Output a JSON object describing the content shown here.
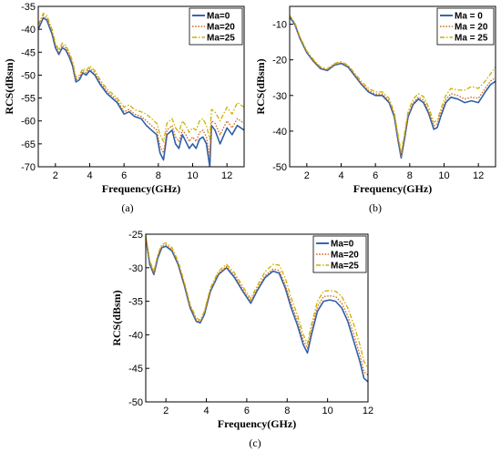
{
  "colors": {
    "ma0": "#2e5fa8",
    "ma20": "#d2691e",
    "ma25": "#c9b000"
  },
  "chart_data": [
    {
      "type": "line",
      "caption": "(a)",
      "xlabel": "Frequency(GHz)",
      "ylabel": "RCS(dBsm)",
      "xlim": [
        1,
        13
      ],
      "ylim": [
        -70,
        -35
      ],
      "xticks": [
        2,
        4,
        6,
        8,
        10,
        12
      ],
      "yticks": [
        -35,
        -40,
        -45,
        -50,
        -55,
        -60,
        -65,
        -70
      ],
      "legend_position": "top-right",
      "series": [
        {
          "name": "Ma=0",
          "x": [
            1,
            1.3,
            1.5,
            1.8,
            2,
            2.2,
            2.4,
            2.6,
            2.8,
            3,
            3.2,
            3.4,
            3.6,
            3.8,
            4,
            4.3,
            4.6,
            5,
            5.3,
            5.6,
            6,
            6.3,
            6.6,
            7,
            7.3,
            7.6,
            7.9,
            8.1,
            8.3,
            8.5,
            8.8,
            9,
            9.2,
            9.4,
            9.6,
            9.8,
            10,
            10.2,
            10.4,
            10.6,
            10.8,
            11,
            11.1,
            11.3,
            11.6,
            12,
            12.3,
            12.6,
            13
          ],
          "y": [
            -40,
            -37.5,
            -38,
            -41,
            -44,
            -45.5,
            -44,
            -44.5,
            -46,
            -48,
            -51.5,
            -51,
            -49.5,
            -50,
            -49,
            -50,
            -52,
            -54,
            -55,
            -56,
            -58.5,
            -58,
            -59,
            -59.5,
            -61,
            -62,
            -63,
            -67,
            -68.5,
            -63,
            -62,
            -65,
            -66,
            -63,
            -64.5,
            -66,
            -65,
            -66,
            -64,
            -63.5,
            -65,
            -70,
            -61,
            -62,
            -65,
            -61.5,
            -63,
            -61,
            -62
          ]
        },
        {
          "name": "Ma=20",
          "x": [
            1,
            1.3,
            1.5,
            1.8,
            2,
            2.2,
            2.4,
            2.6,
            2.8,
            3,
            3.2,
            3.4,
            3.6,
            3.8,
            4,
            4.3,
            4.6,
            5,
            5.3,
            5.6,
            6,
            6.3,
            6.6,
            7,
            7.3,
            7.6,
            7.9,
            8.1,
            8.3,
            8.5,
            8.8,
            9,
            9.2,
            9.4,
            9.6,
            9.8,
            10,
            10.2,
            10.4,
            10.6,
            10.8,
            11,
            11.1,
            11.3,
            11.6,
            12,
            12.3,
            12.6,
            13
          ],
          "y": [
            -39.5,
            -37,
            -37.5,
            -40.5,
            -43.5,
            -45,
            -43.5,
            -44,
            -45.5,
            -47.5,
            -51,
            -50.5,
            -49,
            -49.5,
            -48.5,
            -49.5,
            -51.5,
            -53.5,
            -54.5,
            -55.5,
            -58,
            -57.5,
            -58.5,
            -59,
            -60,
            -61,
            -62,
            -65.5,
            -67,
            -62,
            -61,
            -63.5,
            -64.5,
            -62,
            -63,
            -64.5,
            -63.5,
            -64.5,
            -62.5,
            -62,
            -63.5,
            -68,
            -60,
            -60.5,
            -63,
            -60,
            -61.5,
            -59.5,
            -60.5
          ]
        },
        {
          "name": "Ma=25",
          "x": [
            1,
            1.3,
            1.5,
            1.8,
            2,
            2.2,
            2.4,
            2.6,
            2.8,
            3,
            3.2,
            3.4,
            3.6,
            3.8,
            4,
            4.3,
            4.6,
            5,
            5.3,
            5.6,
            6,
            6.3,
            6.6,
            7,
            7.3,
            7.6,
            7.9,
            8.1,
            8.3,
            8.5,
            8.8,
            9,
            9.2,
            9.4,
            9.6,
            9.8,
            10,
            10.2,
            10.4,
            10.6,
            10.8,
            11,
            11.1,
            11.3,
            11.6,
            12,
            12.3,
            12.6,
            13
          ],
          "y": [
            -39,
            -36.5,
            -37,
            -40,
            -43,
            -44.5,
            -43,
            -43.5,
            -45,
            -47,
            -50.5,
            -50,
            -48.5,
            -49,
            -48,
            -49,
            -51,
            -53,
            -54,
            -55,
            -57,
            -56.5,
            -57.5,
            -58,
            -58.5,
            -59.5,
            -60.5,
            -63,
            -64.5,
            -60.5,
            -59.5,
            -61.5,
            -62.5,
            -60,
            -61,
            -62.5,
            -61.5,
            -62,
            -60,
            -59.5,
            -61,
            -64,
            -57.5,
            -58,
            -60,
            -57,
            -58.5,
            -56,
            -57
          ]
        }
      ]
    },
    {
      "type": "line",
      "caption": "(b)",
      "xlabel": "Frequency(GHz)",
      "ylabel": "RCS(dBsm)",
      "xlim": [
        1,
        13
      ],
      "ylim": [
        -50,
        -5
      ],
      "xticks": [
        2,
        4,
        6,
        8,
        10,
        12
      ],
      "yticks": [
        -10,
        -20,
        -30,
        -40,
        -50
      ],
      "legend_position": "top-right",
      "series": [
        {
          "name": "Ma = 0",
          "x": [
            1,
            1.3,
            1.6,
            2,
            2.4,
            2.8,
            3.2,
            3.6,
            4,
            4.4,
            4.8,
            5.2,
            5.6,
            6,
            6.4,
            6.8,
            7.1,
            7.3,
            7.5,
            7.7,
            7.9,
            8.2,
            8.5,
            8.8,
            9.1,
            9.4,
            9.6,
            9.8,
            10.1,
            10.4,
            10.8,
            11.2,
            11.6,
            12,
            12.4,
            12.7,
            13
          ],
          "y": [
            -8,
            -10,
            -14,
            -18,
            -20.5,
            -22.5,
            -23,
            -21.5,
            -21,
            -22,
            -24.5,
            -27,
            -29,
            -30,
            -30,
            -32,
            -36,
            -42,
            -47.5,
            -42,
            -36,
            -32.5,
            -31,
            -32,
            -35,
            -39.5,
            -39,
            -36,
            -32,
            -30.5,
            -31,
            -32,
            -31.5,
            -32,
            -29,
            -27,
            -26
          ]
        },
        {
          "name": "Ma = 20",
          "x": [
            1,
            1.3,
            1.6,
            2,
            2.4,
            2.8,
            3.2,
            3.6,
            4,
            4.4,
            4.8,
            5.2,
            5.6,
            6,
            6.4,
            6.8,
            7.1,
            7.3,
            7.5,
            7.7,
            7.9,
            8.2,
            8.5,
            8.8,
            9.1,
            9.4,
            9.6,
            9.8,
            10.1,
            10.4,
            10.8,
            11.2,
            11.6,
            12,
            12.4,
            12.7,
            13
          ],
          "y": [
            -7.8,
            -9.8,
            -13.8,
            -17.8,
            -20.3,
            -22.3,
            -22.8,
            -21.3,
            -20.8,
            -21.8,
            -24.2,
            -26.7,
            -28.6,
            -29.6,
            -29.6,
            -31.5,
            -35.5,
            -41.5,
            -47,
            -41.5,
            -35.5,
            -32,
            -30.5,
            -31.3,
            -34.3,
            -38.5,
            -38,
            -35,
            -31.2,
            -29.5,
            -30,
            -31,
            -30.5,
            -30.8,
            -28,
            -26,
            -25
          ]
        },
        {
          "name": "Ma = 25",
          "x": [
            1,
            1.3,
            1.6,
            2,
            2.4,
            2.8,
            3.2,
            3.6,
            4,
            4.4,
            4.8,
            5.2,
            5.6,
            6,
            6.4,
            6.8,
            7.1,
            7.3,
            7.5,
            7.7,
            7.9,
            8.2,
            8.5,
            8.8,
            9.1,
            9.4,
            9.6,
            9.8,
            10.1,
            10.4,
            10.8,
            11.2,
            11.6,
            12,
            12.4,
            12.7,
            13
          ],
          "y": [
            -7.5,
            -9.5,
            -13.5,
            -17.5,
            -20,
            -22,
            -22.5,
            -21,
            -20.5,
            -21.5,
            -23.8,
            -26.2,
            -28,
            -29,
            -29,
            -30.8,
            -34.8,
            -40.5,
            -46,
            -40.5,
            -34.5,
            -31,
            -29.5,
            -30.3,
            -33.2,
            -37.5,
            -37,
            -34,
            -30,
            -28,
            -28.5,
            -28.5,
            -27.5,
            -28,
            -26,
            -24,
            -22
          ]
        }
      ]
    },
    {
      "type": "line",
      "caption": "(c)",
      "xlabel": "Frequency(GHz)",
      "ylabel": "RCS(dBsm)",
      "xlim": [
        1,
        12
      ],
      "ylim": [
        -50,
        -25
      ],
      "xticks": [
        2,
        4,
        6,
        8,
        10,
        12
      ],
      "yticks": [
        -25,
        -30,
        -35,
        -40,
        -45,
        -50
      ],
      "legend_position": "top-right",
      "series": [
        {
          "name": "Ma=0",
          "x": [
            1,
            1.2,
            1.4,
            1.6,
            1.8,
            2,
            2.3,
            2.6,
            2.9,
            3.2,
            3.5,
            3.7,
            3.9,
            4.2,
            4.6,
            5,
            5.4,
            5.8,
            6.2,
            6.5,
            6.9,
            7.3,
            7.6,
            7.9,
            8.2,
            8.5,
            8.8,
            9,
            9.2,
            9.5,
            9.8,
            10.1,
            10.4,
            10.7,
            11,
            11.3,
            11.6,
            11.8,
            12
          ],
          "y": [
            -25.5,
            -29.5,
            -31,
            -28.5,
            -27,
            -26.8,
            -27.5,
            -29.5,
            -32.5,
            -36,
            -38,
            -38.2,
            -37,
            -33.5,
            -31,
            -30,
            -31.5,
            -33.5,
            -35.3,
            -33.5,
            -31.5,
            -30.5,
            -30.8,
            -33,
            -36,
            -38.5,
            -41.5,
            -42.7,
            -40,
            -36.5,
            -35,
            -34.8,
            -35,
            -36,
            -38,
            -41,
            -44,
            -46.5,
            -47
          ]
        },
        {
          "name": "Ma=20",
          "x": [
            1,
            1.2,
            1.4,
            1.6,
            1.8,
            2,
            2.3,
            2.6,
            2.9,
            3.2,
            3.5,
            3.7,
            3.9,
            4.2,
            4.6,
            5,
            5.4,
            5.8,
            6.2,
            6.5,
            6.9,
            7.3,
            7.6,
            7.9,
            8.2,
            8.5,
            8.8,
            9,
            9.2,
            9.5,
            9.8,
            10.1,
            10.4,
            10.7,
            11,
            11.3,
            11.6,
            11.8,
            12
          ],
          "y": [
            -25.3,
            -29.3,
            -30.8,
            -28.2,
            -26.8,
            -26.6,
            -27.3,
            -29.3,
            -32.3,
            -35.8,
            -37.8,
            -38,
            -36.8,
            -33.3,
            -30.8,
            -29.8,
            -31.2,
            -33.2,
            -35,
            -33.2,
            -31.2,
            -30.2,
            -30.4,
            -32.5,
            -35.4,
            -37.8,
            -40.8,
            -42,
            -39.3,
            -35.8,
            -34.3,
            -34.2,
            -34.3,
            -35.3,
            -37.2,
            -40,
            -43,
            -45.5,
            -46
          ]
        },
        {
          "name": "Ma=25",
          "x": [
            1,
            1.2,
            1.4,
            1.6,
            1.8,
            2,
            2.3,
            2.6,
            2.9,
            3.2,
            3.5,
            3.7,
            3.9,
            4.2,
            4.6,
            5,
            5.4,
            5.8,
            6.2,
            6.5,
            6.9,
            7.3,
            7.6,
            7.9,
            8.2,
            8.5,
            8.8,
            9,
            9.2,
            9.5,
            9.8,
            10.1,
            10.4,
            10.7,
            11,
            11.3,
            11.6,
            11.8,
            12
          ],
          "y": [
            -25,
            -29,
            -30.5,
            -28,
            -26.5,
            -26.3,
            -27,
            -29,
            -32,
            -35.5,
            -37.5,
            -37.8,
            -36.5,
            -33,
            -30.5,
            -29.5,
            -30.8,
            -32.8,
            -34.6,
            -32.8,
            -30.6,
            -29.5,
            -29.6,
            -31.5,
            -34.5,
            -37,
            -40,
            -41.3,
            -38.5,
            -35,
            -33.5,
            -33.4,
            -33.5,
            -34.3,
            -36,
            -38.5,
            -41.5,
            -44,
            -45
          ]
        }
      ]
    }
  ]
}
